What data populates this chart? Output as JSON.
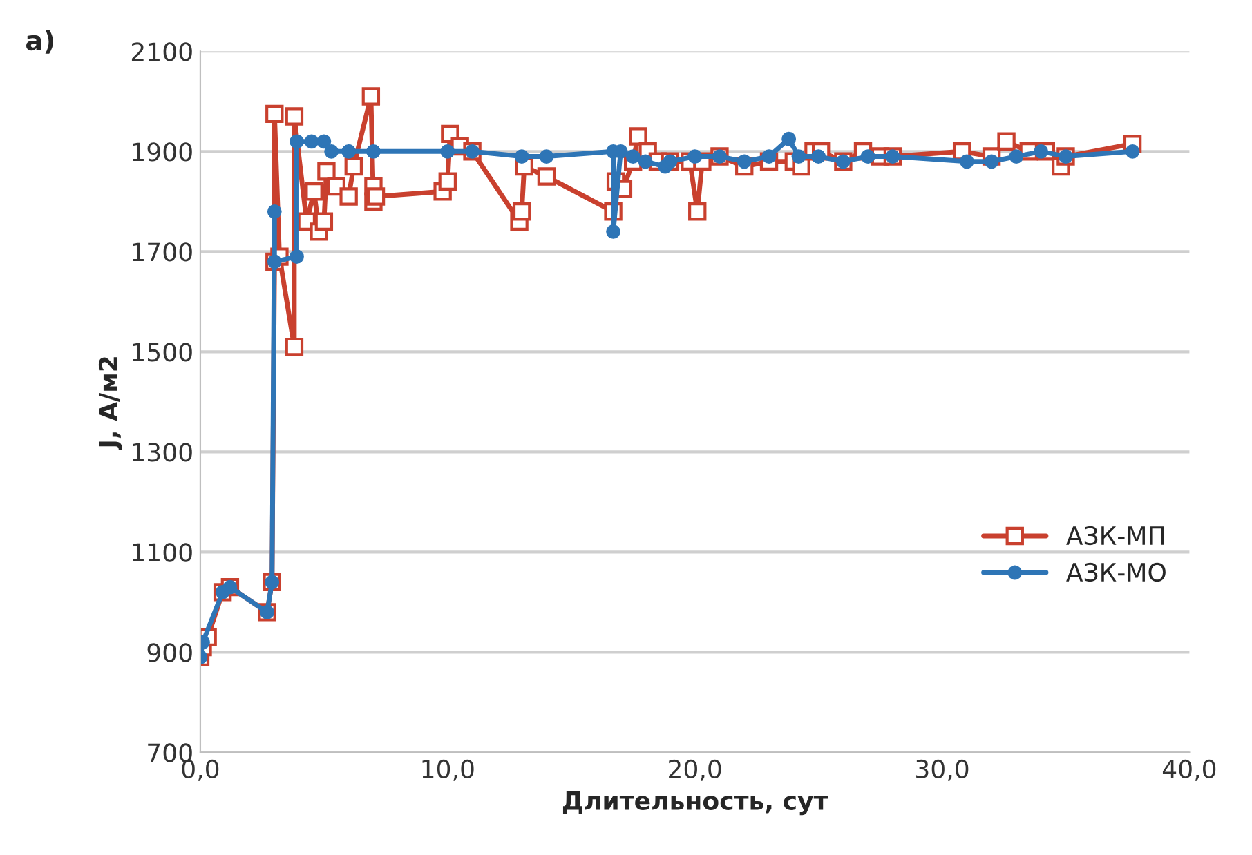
{
  "chart_data": {
    "type": "line",
    "xlabel": "Длительность, сут",
    "ylabel": "J, А/м2",
    "annotations": [
      "а)"
    ],
    "xlim": [
      0,
      40
    ],
    "ylim": [
      700,
      2100
    ],
    "xticks": [
      {
        "value": 0,
        "label": "0,0"
      },
      {
        "value": 10,
        "label": "10,0"
      },
      {
        "value": 20,
        "label": "20,0"
      },
      {
        "value": 30,
        "label": "30,0"
      },
      {
        "value": 40,
        "label": "40,0"
      }
    ],
    "yticks": [
      700,
      900,
      1100,
      1300,
      1500,
      1700,
      1900,
      2100
    ],
    "grid": "y",
    "legend": "right",
    "series": [
      {
        "name": "АЗК-МП",
        "color": "#c9402e",
        "marker": "square",
        "x": [
          0.0,
          0.1,
          0.3,
          0.9,
          1.2,
          2.7,
          2.9,
          3.0,
          3.0,
          3.2,
          3.8,
          3.8,
          4.3,
          4.6,
          4.8,
          5.0,
          5.1,
          5.5,
          6.0,
          6.2,
          6.9,
          7.0,
          7.0,
          7.1,
          9.8,
          10.0,
          10.1,
          10.5,
          11.0,
          12.9,
          13.0,
          13.1,
          14.0,
          16.7,
          16.8,
          17.1,
          17.5,
          17.7,
          18.1,
          18.5,
          19.0,
          19.8,
          20.1,
          20.3,
          21.0,
          22.0,
          23.0,
          24.0,
          24.3,
          24.8,
          25.1,
          26.0,
          26.8,
          27.5,
          28.0,
          30.8,
          32.0,
          32.6,
          33.5,
          34.2,
          34.8,
          35.0,
          37.7
        ],
        "values": [
          890,
          910,
          930,
          1020,
          1030,
          980,
          1040,
          1680,
          1975,
          1690,
          1510,
          1970,
          1760,
          1820,
          1740,
          1760,
          1860,
          1830,
          1810,
          1870,
          2010,
          1800,
          1830,
          1810,
          1820,
          1840,
          1935,
          1910,
          1900,
          1760,
          1780,
          1870,
          1850,
          1780,
          1840,
          1825,
          1880,
          1930,
          1900,
          1880,
          1880,
          1880,
          1780,
          1880,
          1890,
          1870,
          1880,
          1880,
          1870,
          1900,
          1900,
          1880,
          1900,
          1890,
          1890,
          1900,
          1890,
          1920,
          1900,
          1900,
          1870,
          1890,
          1915
        ]
      },
      {
        "name": "АЗК-МО",
        "color": "#2e75b6",
        "marker": "circle",
        "x": [
          0.0,
          0.1,
          0.9,
          1.2,
          2.7,
          2.9,
          3.0,
          3.0,
          3.9,
          3.9,
          4.5,
          5.0,
          5.3,
          6.0,
          7.0,
          10.0,
          11.0,
          13.0,
          14.0,
          16.7,
          16.7,
          17.0,
          17.5,
          18.0,
          18.8,
          19.0,
          20.0,
          21.0,
          22.0,
          23.0,
          23.8,
          24.2,
          25.0,
          26.0,
          27.0,
          28.0,
          31.0,
          32.0,
          33.0,
          34.0,
          35.0,
          37.7
        ],
        "values": [
          890,
          920,
          1020,
          1030,
          980,
          1040,
          1780,
          1680,
          1690,
          1920,
          1920,
          1920,
          1900,
          1900,
          1900,
          1900,
          1900,
          1890,
          1890,
          1900,
          1740,
          1900,
          1890,
          1880,
          1870,
          1880,
          1890,
          1890,
          1880,
          1890,
          1925,
          1890,
          1890,
          1880,
          1890,
          1890,
          1880,
          1880,
          1890,
          1900,
          1890,
          1900
        ]
      }
    ]
  }
}
